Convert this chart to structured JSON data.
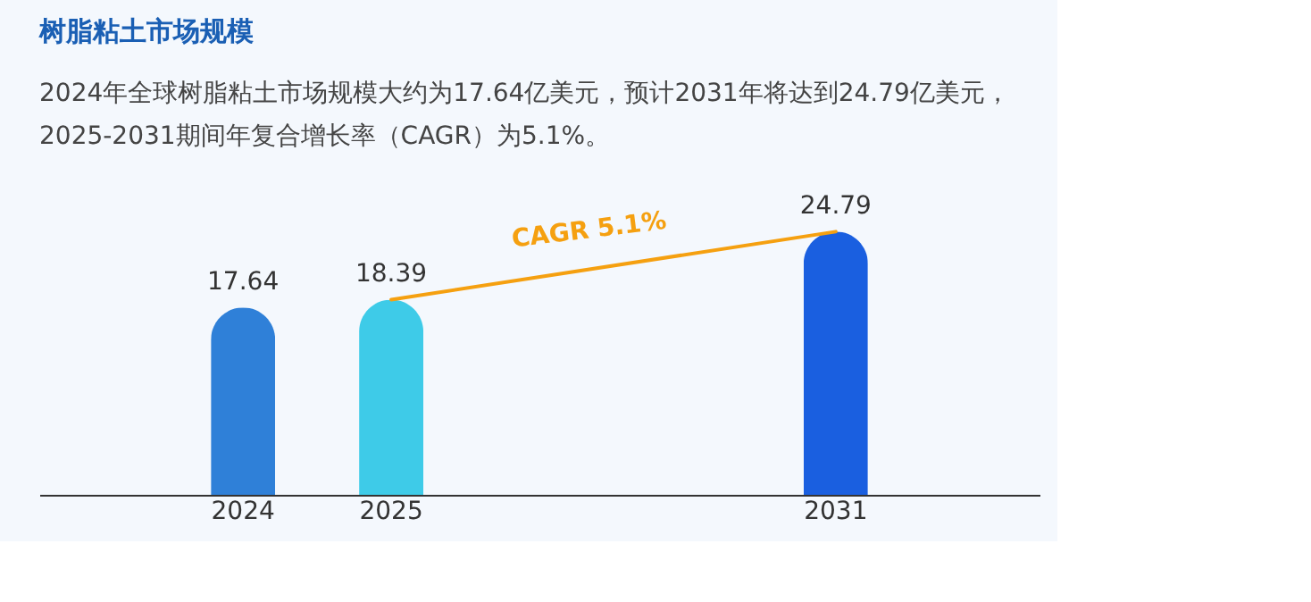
{
  "chart_data": {
    "type": "bar",
    "title": "树脂粘土市场规模",
    "subtitle": "2024年全球树脂粘土市场规模大约为17.64亿美元，预计2031年将达到24.79亿美元，2025-2031期间年复合增长率（CAGR）为5.1%。",
    "categories": [
      "2024",
      "2025",
      null,
      null,
      "2031"
    ],
    "values": [
      17.64,
      18.39,
      null,
      null,
      24.79
    ],
    "colors": [
      "#2f80d8",
      "#3ecbe8",
      null,
      null,
      "#1a5fe0"
    ],
    "data_labels": true,
    "annotations": [
      "CAGR 5.1%"
    ]
  }
}
